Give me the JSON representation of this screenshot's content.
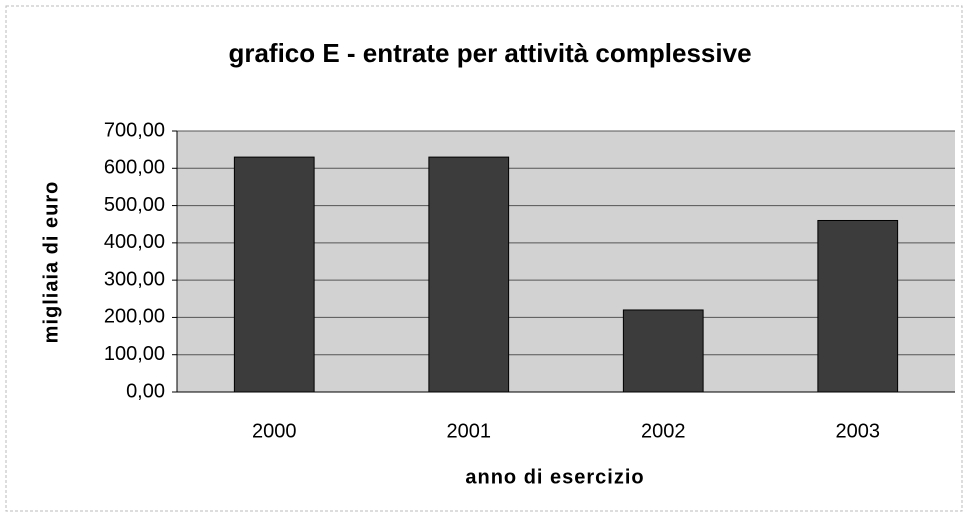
{
  "chart_data": {
    "type": "bar",
    "title": "grafico E - entrate per attività complessive",
    "x_label": "anno di esercizio",
    "y_label": "migliaia di euro",
    "categories": [
      "2000",
      "2001",
      "2002",
      "2003"
    ],
    "values": [
      630,
      630,
      220,
      460
    ],
    "color": "#3c3c3c",
    "ylim": [
      0,
      700
    ],
    "yticks": [
      {
        "value": 0,
        "label": "0,00"
      },
      {
        "value": 100,
        "label": "100,00"
      },
      {
        "value": 200,
        "label": "200,00"
      },
      {
        "value": 300,
        "label": "300,00"
      },
      {
        "value": 400,
        "label": "400,00"
      },
      {
        "value": 500,
        "label": "500,00"
      },
      {
        "value": 600,
        "label": "600,00"
      },
      {
        "value": 700,
        "label": "700,00"
      }
    ],
    "grid": true
  }
}
